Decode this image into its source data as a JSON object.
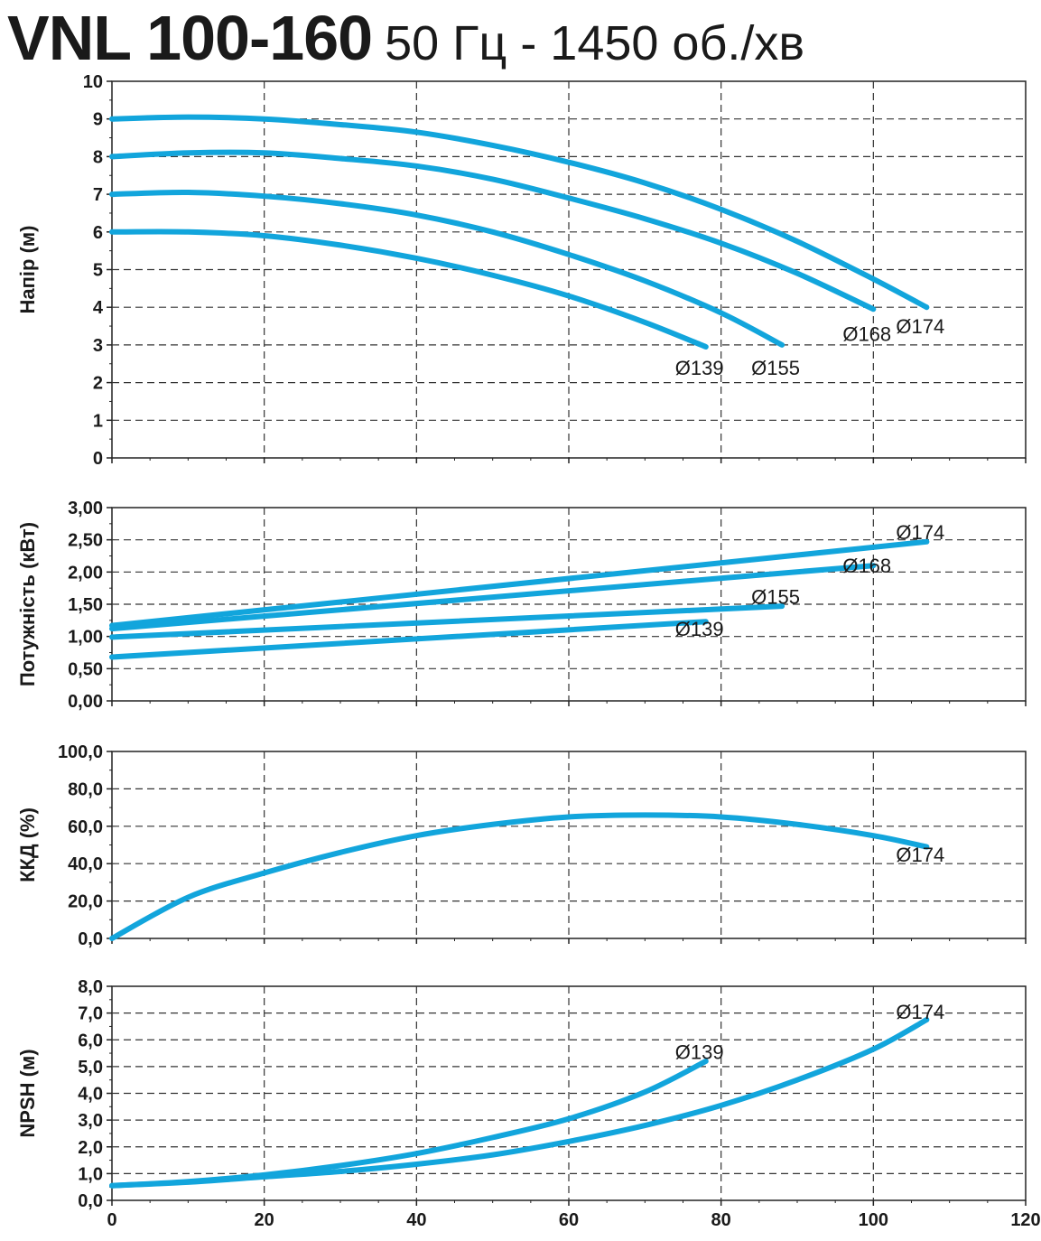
{
  "title": "VNL 100-160",
  "subtitle": "50 Гц - 1450 об./хв",
  "line_color": "#12a5dc",
  "chart_data": [
    {
      "type": "line",
      "ylabel": "Напір (м)",
      "xlim": [
        0,
        120
      ],
      "ylim": [
        0,
        10
      ],
      "yticks": [
        "0",
        "1",
        "2",
        "3",
        "4",
        "5",
        "6",
        "7",
        "8",
        "9",
        "10"
      ],
      "xticks": [
        "0",
        "20",
        "40",
        "60",
        "80",
        "100",
        "120"
      ],
      "show_xticks": false,
      "grid": true,
      "series": [
        {
          "name": "Ø139",
          "x": [
            0,
            10,
            20,
            30,
            40,
            50,
            60,
            70,
            78
          ],
          "y": [
            6.0,
            6.0,
            5.9,
            5.65,
            5.3,
            4.85,
            4.3,
            3.6,
            2.95
          ],
          "label_at": [
            78,
            2.4
          ]
        },
        {
          "name": "Ø155",
          "x": [
            0,
            10,
            20,
            30,
            40,
            50,
            60,
            70,
            80,
            88
          ],
          "y": [
            7.0,
            7.05,
            6.95,
            6.75,
            6.45,
            6.0,
            5.4,
            4.7,
            3.85,
            3.0
          ],
          "label_at": [
            88,
            2.4
          ]
        },
        {
          "name": "Ø168",
          "x": [
            0,
            10,
            20,
            30,
            40,
            50,
            60,
            70,
            80,
            90,
            100
          ],
          "y": [
            8.0,
            8.1,
            8.1,
            7.95,
            7.75,
            7.4,
            6.9,
            6.35,
            5.7,
            4.9,
            3.95
          ],
          "label_at": [
            100,
            3.3
          ]
        },
        {
          "name": "Ø174",
          "x": [
            0,
            10,
            20,
            30,
            40,
            50,
            60,
            70,
            80,
            90,
            100,
            107
          ],
          "y": [
            9.0,
            9.05,
            9.0,
            8.85,
            8.65,
            8.3,
            7.85,
            7.3,
            6.6,
            5.75,
            4.75,
            4.0
          ],
          "label_at": [
            107,
            3.5
          ]
        }
      ]
    },
    {
      "type": "line",
      "ylabel": "Потужність (кВт)",
      "xlim": [
        0,
        120
      ],
      "ylim": [
        0,
        3
      ],
      "yticks": [
        "0,00",
        "0,50",
        "1,00",
        "1,50",
        "2,00",
        "2,50",
        "3,00"
      ],
      "xticks": [
        "0",
        "20",
        "40",
        "60",
        "80",
        "100",
        "120"
      ],
      "show_xticks": false,
      "grid": true,
      "series": [
        {
          "name": "Ø139",
          "x": [
            0,
            78
          ],
          "y": [
            0.68,
            1.23
          ],
          "label_at": [
            78,
            1.12
          ]
        },
        {
          "name": "Ø155",
          "x": [
            0,
            88
          ],
          "y": [
            0.99,
            1.47
          ],
          "label_at": [
            88,
            1.62
          ]
        },
        {
          "name": "Ø168",
          "x": [
            0,
            100
          ],
          "y": [
            1.12,
            2.1
          ],
          "label_at": [
            100,
            2.1
          ]
        },
        {
          "name": "Ø174",
          "x": [
            0,
            107
          ],
          "y": [
            1.17,
            2.47
          ],
          "label_at": [
            107,
            2.62
          ]
        }
      ]
    },
    {
      "type": "line",
      "ylabel": "ККД (%)",
      "xlim": [
        0,
        120
      ],
      "ylim": [
        0,
        100
      ],
      "yticks": [
        "0,0",
        "20,0",
        "40,0",
        "60,0",
        "80,0",
        "100,0"
      ],
      "xticks": [
        "0",
        "20",
        "40",
        "60",
        "80",
        "100",
        "120"
      ],
      "show_xticks": false,
      "grid": true,
      "series": [
        {
          "name": "Ø174",
          "x": [
            0,
            10,
            20,
            30,
            40,
            50,
            60,
            70,
            80,
            90,
            100,
            107
          ],
          "y": [
            0,
            22,
            35,
            46,
            55,
            61,
            65,
            66,
            65,
            61,
            55,
            49
          ],
          "label_at": [
            107,
            45
          ]
        }
      ]
    },
    {
      "type": "line",
      "ylabel": "NPSH (м)",
      "xlim": [
        0,
        120
      ],
      "ylim": [
        0,
        8
      ],
      "yticks": [
        "0,0",
        "1,0",
        "2,0",
        "3,0",
        "4,0",
        "5,0",
        "6,0",
        "7,0",
        "8,0"
      ],
      "xticks": [
        "0",
        "20",
        "40",
        "60",
        "80",
        "100",
        "120"
      ],
      "show_xticks": true,
      "grid": true,
      "series": [
        {
          "name": "Ø139",
          "x": [
            0,
            10,
            20,
            30,
            40,
            50,
            60,
            70,
            78
          ],
          "y": [
            0.55,
            0.7,
            0.95,
            1.3,
            1.75,
            2.35,
            3.05,
            4.05,
            5.2
          ],
          "label_at": [
            78,
            5.55
          ]
        },
        {
          "name": "Ø174",
          "x": [
            0,
            10,
            20,
            30,
            40,
            50,
            60,
            70,
            80,
            90,
            100,
            107
          ],
          "y": [
            0.55,
            0.68,
            0.88,
            1.08,
            1.35,
            1.7,
            2.2,
            2.8,
            3.55,
            4.5,
            5.65,
            6.75
          ],
          "label_at": [
            107,
            7.05
          ]
        }
      ]
    }
  ]
}
